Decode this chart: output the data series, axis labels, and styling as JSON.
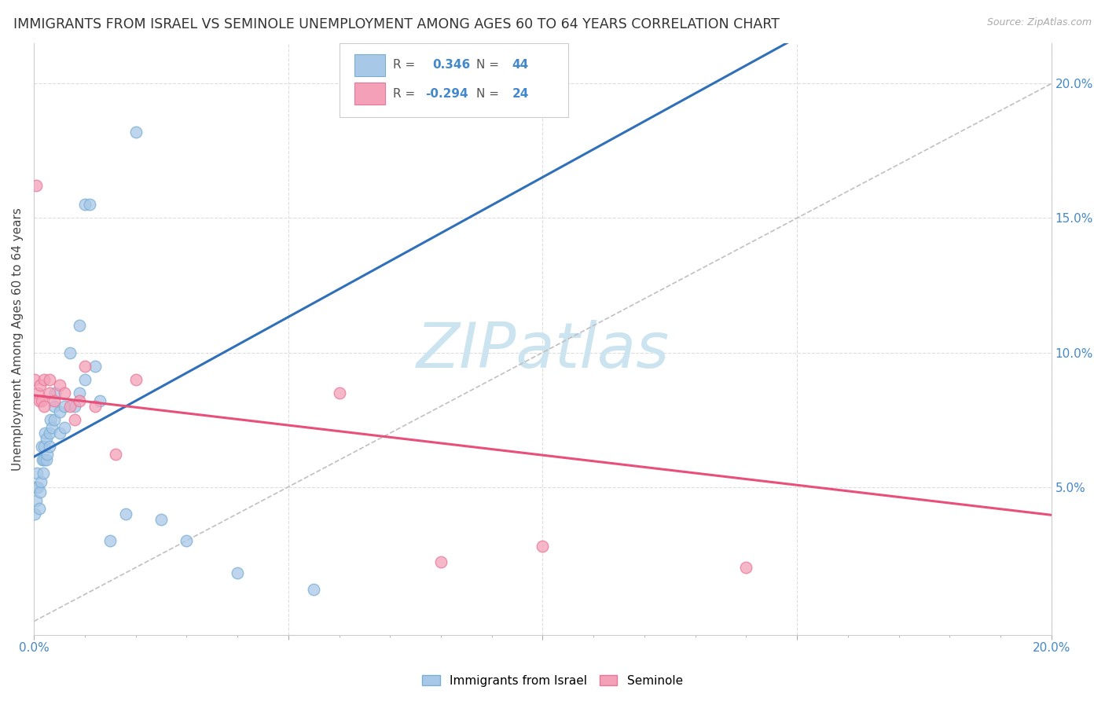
{
  "title": "IMMIGRANTS FROM ISRAEL VS SEMINOLE UNEMPLOYMENT AMONG AGES 60 TO 64 YEARS CORRELATION CHART",
  "source": "Source: ZipAtlas.com",
  "ylabel": "Unemployment Among Ages 60 to 64 years",
  "color_blue": "#a8c8e8",
  "color_pink": "#f4a0b8",
  "color_blue_edge": "#7aafd4",
  "color_pink_edge": "#e87898",
  "color_blue_line": "#3070b8",
  "color_pink_line": "#e8507a",
  "color_dashed": "#c8c8c8",
  "blue_r": 0.346,
  "pink_r": -0.294,
  "blue_n": 44,
  "pink_n": 24,
  "xlim": [
    0.0,
    0.2
  ],
  "ylim": [
    -0.005,
    0.215
  ],
  "background_color": "#ffffff",
  "grid_color": "#dddddd",
  "watermark_text": "ZIPatlas",
  "watermark_color": "#cce4f0",
  "blue_x": [
    0.0002,
    0.0004,
    0.0005,
    0.0006,
    0.0008,
    0.001,
    0.0012,
    0.0014,
    0.0015,
    0.0016,
    0.0018,
    0.002,
    0.002,
    0.0022,
    0.0024,
    0.0025,
    0.0026,
    0.003,
    0.003,
    0.0032,
    0.0035,
    0.004,
    0.004,
    0.0042,
    0.005,
    0.005,
    0.006,
    0.006,
    0.007,
    0.008,
    0.009,
    0.009,
    0.01,
    0.01,
    0.011,
    0.012,
    0.013,
    0.015,
    0.018,
    0.02,
    0.025,
    0.03,
    0.04,
    0.055
  ],
  "blue_y": [
    0.04,
    0.045,
    0.05,
    0.055,
    0.05,
    0.042,
    0.048,
    0.052,
    0.065,
    0.06,
    0.055,
    0.06,
    0.065,
    0.07,
    0.068,
    0.06,
    0.062,
    0.065,
    0.07,
    0.075,
    0.072,
    0.075,
    0.08,
    0.085,
    0.07,
    0.078,
    0.072,
    0.08,
    0.1,
    0.08,
    0.085,
    0.11,
    0.09,
    0.155,
    0.155,
    0.095,
    0.082,
    0.03,
    0.04,
    0.182,
    0.038,
    0.03,
    0.018,
    0.012
  ],
  "pink_x": [
    0.0002,
    0.0005,
    0.0008,
    0.001,
    0.0012,
    0.0015,
    0.002,
    0.002,
    0.003,
    0.003,
    0.004,
    0.005,
    0.006,
    0.007,
    0.008,
    0.009,
    0.01,
    0.012,
    0.016,
    0.02,
    0.06,
    0.08,
    0.1,
    0.14
  ],
  "pink_y": [
    0.09,
    0.162,
    0.085,
    0.082,
    0.088,
    0.082,
    0.08,
    0.09,
    0.09,
    0.085,
    0.082,
    0.088,
    0.085,
    0.08,
    0.075,
    0.082,
    0.095,
    0.08,
    0.062,
    0.09,
    0.085,
    0.022,
    0.028,
    0.02
  ]
}
